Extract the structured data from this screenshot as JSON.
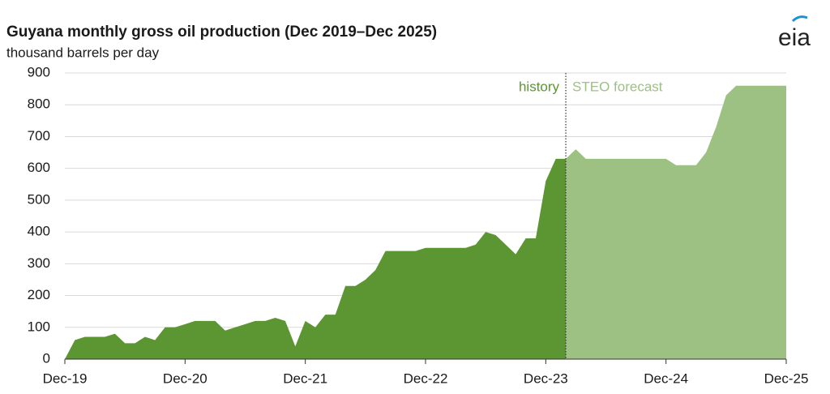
{
  "chart_data": {
    "type": "area",
    "title": "Guyana monthly gross oil production (Dec 2019–Dec 2025)",
    "subtitle": "thousand barrels per day",
    "logo": "eia",
    "annotations": [
      "history",
      "STEO forecast"
    ],
    "categories": [
      "Dec-19",
      null,
      null,
      null,
      null,
      null,
      null,
      null,
      null,
      null,
      null,
      null,
      "Dec-20",
      null,
      null,
      null,
      null,
      null,
      null,
      null,
      null,
      null,
      null,
      null,
      "Dec-21",
      null,
      null,
      null,
      null,
      null,
      null,
      null,
      null,
      null,
      null,
      null,
      "Dec-22",
      null,
      null,
      null,
      null,
      null,
      null,
      null,
      null,
      null,
      null,
      null,
      "Dec-23",
      null,
      null,
      null,
      null,
      null,
      null,
      null,
      null,
      null,
      null,
      null,
      "Dec-24",
      null,
      null,
      null,
      null,
      null,
      null,
      null,
      null,
      null,
      null,
      null,
      "Dec-25"
    ],
    "series": [
      {
        "name": "history",
        "color": "#5b9632",
        "values": [
          0,
          60,
          70,
          70,
          70,
          80,
          50,
          50,
          70,
          60,
          100,
          100,
          110,
          120,
          120,
          120,
          90,
          100,
          110,
          120,
          120,
          130,
          120,
          40,
          120,
          100,
          140,
          140,
          230,
          230,
          250,
          280,
          340,
          340,
          340,
          340,
          350,
          350,
          350,
          350,
          350,
          360,
          400,
          390,
          360,
          330,
          380,
          380,
          560,
          630,
          630,
          null,
          null,
          null,
          null,
          null,
          null,
          null,
          null,
          null,
          null,
          null,
          null,
          null,
          null,
          null,
          null,
          null,
          null,
          null,
          null,
          null,
          null
        ]
      },
      {
        "name": "STEO forecast",
        "color": "#9dc183",
        "values": [
          null,
          null,
          null,
          null,
          null,
          null,
          null,
          null,
          null,
          null,
          null,
          null,
          null,
          null,
          null,
          null,
          null,
          null,
          null,
          null,
          null,
          null,
          null,
          null,
          null,
          null,
          null,
          null,
          null,
          null,
          null,
          null,
          null,
          null,
          null,
          null,
          null,
          null,
          null,
          null,
          null,
          null,
          null,
          null,
          null,
          null,
          null,
          null,
          null,
          null,
          630,
          660,
          630,
          630,
          630,
          630,
          630,
          630,
          630,
          630,
          630,
          610,
          610,
          610,
          650,
          730,
          830,
          860,
          860,
          860,
          860,
          860,
          860
        ]
      }
    ],
    "ylim": [
      0,
      900
    ],
    "yticks": [
      0,
      100,
      200,
      300,
      400,
      500,
      600,
      700,
      800,
      900
    ],
    "grid": true
  }
}
